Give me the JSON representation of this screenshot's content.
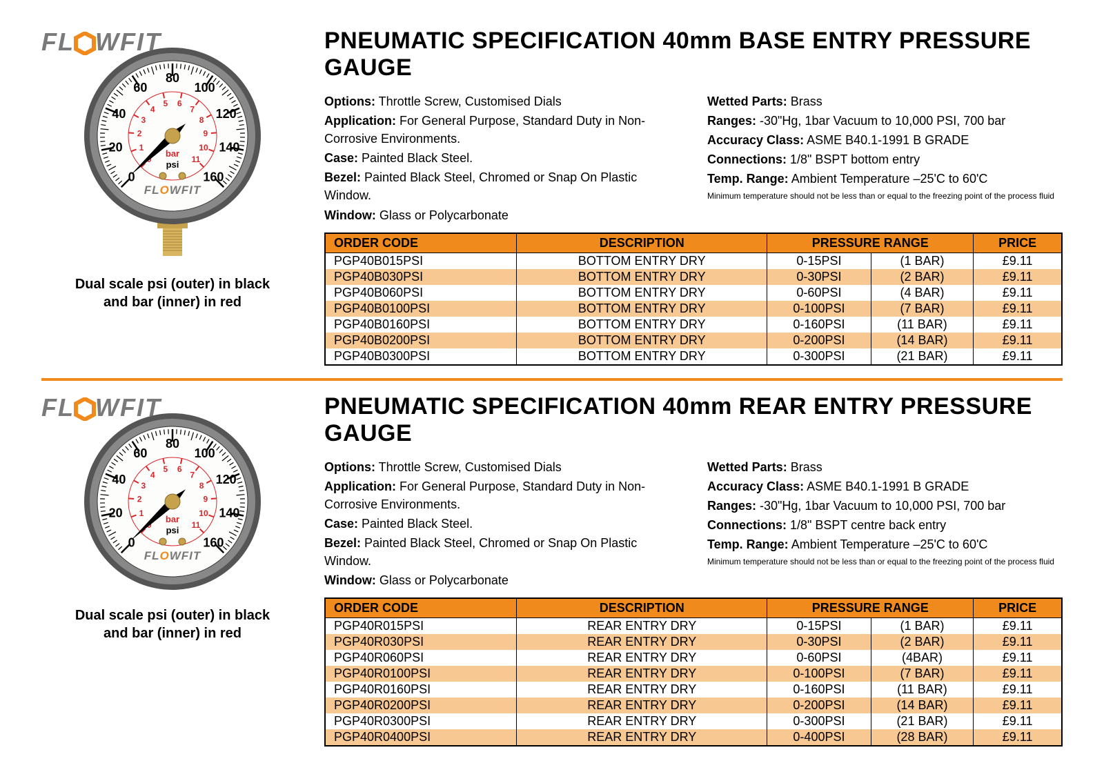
{
  "brand": "FLOWFIT",
  "colors": {
    "accent": "#f08a1d",
    "row_alt": "#f8c893",
    "logo_gray": "#7a7a7a"
  },
  "caption": "Dual scale psi (outer) in black and bar (inner) in red",
  "footnote": "Minimum temperature should not be less than or equal to the freezing point of the process fluid",
  "gauge": {
    "outer_ticks": [
      0,
      20,
      40,
      60,
      80,
      100,
      120,
      140,
      160
    ],
    "inner_ticks": [
      0,
      1,
      2,
      3,
      4,
      5,
      6,
      7,
      8,
      9,
      10,
      11
    ],
    "inner_label": "bar",
    "outer_label": "psi"
  },
  "sections": [
    {
      "title": "PNEUMATIC SPECIFICATION 40mm BASE ENTRY PRESSURE GAUGE",
      "has_stem": true,
      "spec_left": [
        {
          "k": "Options:",
          "v": " Throttle Screw, Customised Dials"
        },
        {
          "k": "Application:",
          "v": " For General Purpose, Standard Duty in Non-Corrosive Environments."
        },
        {
          "k": "Case:",
          "v": " Painted Black Steel."
        },
        {
          "k": "Bezel:",
          "v": " Painted Black Steel, Chromed or Snap On Plastic Window."
        },
        {
          "k": "Window:",
          "v": " Glass or Polycarbonate"
        }
      ],
      "spec_right": [
        {
          "k": "Wetted Parts:",
          "v": " Brass"
        },
        {
          "k": "Ranges:",
          "v": " -30\"Hg, 1bar Vacuum to 10,000 PSI, 700 bar"
        },
        {
          "k": "Accuracy Class:",
          "v": " ASME B40.1-1991 B GRADE"
        },
        {
          "k": "Connections:",
          "v": " 1/8\" BSPT bottom entry"
        },
        {
          "k": "Temp. Range:",
          "v": " Ambient Temperature –25'C to 60'C"
        }
      ],
      "table": {
        "headers": [
          "ORDER CODE",
          "DESCRIPTION",
          "PRESSURE RANGE",
          "PRICE"
        ],
        "colwidths": [
          "26%",
          "34%",
          "28%",
          "12%"
        ],
        "rows": [
          [
            "PGP40B015PSI",
            "BOTTOM ENTRY DRY",
            "0-15PSI",
            "(1 BAR)",
            "£9.11"
          ],
          [
            "PGP40B030PSI",
            "BOTTOM ENTRY DRY",
            "0-30PSI",
            "(2 BAR)",
            "£9.11"
          ],
          [
            "PGP40B060PSI",
            "BOTTOM ENTRY DRY",
            "0-60PSI",
            "(4 BAR)",
            "£9.11"
          ],
          [
            "PGP40B0100PSI",
            "BOTTOM ENTRY DRY",
            "0-100PSI",
            "(7 BAR)",
            "£9.11"
          ],
          [
            "PGP40B0160PSI",
            "BOTTOM ENTRY DRY",
            "0-160PSI",
            "(11 BAR)",
            "£9.11"
          ],
          [
            "PGP40B0200PSI",
            "BOTTOM ENTRY DRY",
            "0-200PSI",
            "(14 BAR)",
            "£9.11"
          ],
          [
            "PGP40B0300PSI",
            "BOTTOM ENTRY DRY",
            "0-300PSI",
            "(21 BAR)",
            "£9.11"
          ]
        ]
      }
    },
    {
      "title": "PNEUMATIC SPECIFICATION 40mm REAR ENTRY PRESSURE GAUGE",
      "has_stem": false,
      "spec_left": [
        {
          "k": "Options:",
          "v": " Throttle Screw, Customised Dials"
        },
        {
          "k": "Application:",
          "v": " For General Purpose, Standard Duty in Non-Corrosive Environments."
        },
        {
          "k": "Case:",
          "v": " Painted Black Steel."
        },
        {
          "k": "Bezel:",
          "v": " Painted Black Steel, Chromed or Snap On Plastic Window."
        },
        {
          "k": "Window:",
          "v": " Glass or Polycarbonate"
        }
      ],
      "spec_right": [
        {
          "k": "Wetted Parts:",
          "v": " Brass"
        },
        {
          "k": "Accuracy Class:",
          "v": " ASME B40.1-1991 B GRADE"
        },
        {
          "k": "Ranges:",
          "v": " -30\"Hg, 1bar Vacuum to 10,000 PSI, 700 bar"
        },
        {
          "k": "Connections:",
          "v": " 1/8\" BSPT centre back entry"
        },
        {
          "k": "Temp. Range:",
          "v": " Ambient Temperature –25'C to 60'C"
        }
      ],
      "table": {
        "headers": [
          "ORDER CODE",
          "DESCRIPTION",
          "PRESSURE RANGE",
          "PRICE"
        ],
        "colwidths": [
          "26%",
          "34%",
          "28%",
          "12%"
        ],
        "rows": [
          [
            "PGP40R015PSI",
            "REAR ENTRY DRY",
            "0-15PSI",
            "(1 BAR)",
            "£9.11"
          ],
          [
            "PGP40R030PSI",
            "REAR ENTRY DRY",
            "0-30PSI",
            "(2 BAR)",
            "£9.11"
          ],
          [
            "PGP40R060PSI",
            "REAR ENTRY DRY",
            "0-60PSI",
            "(4BAR)",
            "£9.11"
          ],
          [
            "PGP40R0100PSI",
            "REAR ENTRY DRY",
            "0-100PSI",
            "(7 BAR)",
            "£9.11"
          ],
          [
            "PGP40R0160PSI",
            "REAR ENTRY DRY",
            "0-160PSI",
            "(11 BAR)",
            "£9.11"
          ],
          [
            "PGP40R0200PSI",
            "REAR ENTRY DRY",
            "0-200PSI",
            "(14 BAR)",
            "£9.11"
          ],
          [
            "PGP40R0300PSI",
            "REAR ENTRY DRY",
            "0-300PSI",
            "(21 BAR)",
            "£9.11"
          ],
          [
            "PGP40R0400PSI",
            "REAR ENTRY DRY",
            "0-400PSI",
            "(28 BAR)",
            "£9.11"
          ]
        ]
      }
    }
  ]
}
